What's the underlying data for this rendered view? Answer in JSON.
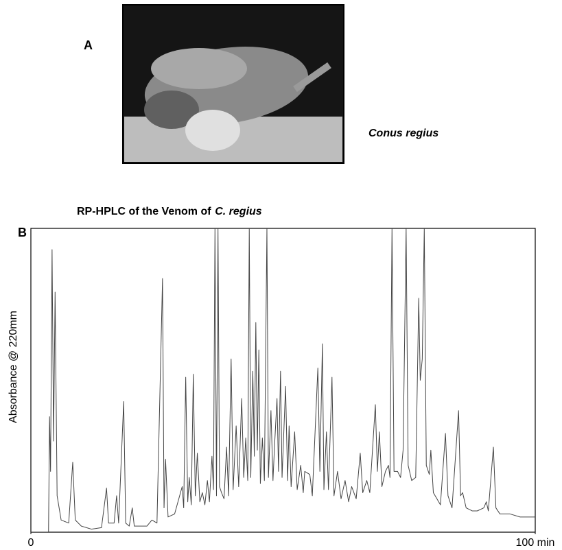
{
  "panel_a": {
    "label": "A",
    "caption": "Conus regius"
  },
  "chart_data": {
    "type": "line",
    "label": "B",
    "title": "RP-HPLC of the Venom of",
    "title_italic": "C. regius",
    "y_label": "Absorbance @ 220mm",
    "color": "#444444",
    "xlim": [
      0,
      100
    ],
    "xticks": [
      0,
      {
        "value": 100,
        "label": "100 min"
      }
    ],
    "ylim": [
      0,
      100
    ],
    "x": [
      0,
      3.5,
      3.7,
      3.9,
      4.2,
      4.5,
      4.8,
      5.2,
      6,
      7.5,
      8.3,
      8.8,
      10,
      12,
      14,
      15,
      15.4,
      16.5,
      17,
      17.4,
      18.4,
      18.8,
      19.5,
      20.1,
      20.5,
      23,
      24,
      25,
      26.1,
      26.4,
      26.7,
      27.2,
      28.5,
      30,
      30.3,
      30.7,
      31.1,
      31.4,
      31.8,
      32.2,
      32.6,
      33,
      33.5,
      34,
      34.5,
      35,
      35.4,
      35.9,
      36.2,
      36.5,
      36.8,
      37.1,
      37.4,
      37.8,
      38.3,
      38.8,
      39.2,
      39.7,
      40.1,
      40.7,
      41.2,
      41.8,
      42.2,
      42.6,
      43,
      43.3,
      43.6,
      44,
      44.3,
      44.6,
      44.9,
      45.2,
      45.5,
      45.9,
      46.3,
      46.8,
      47.1,
      47.6,
      48,
      48.3,
      48.8,
      49.1,
      49.5,
      49.8,
      50.5,
      50.9,
      51.2,
      51.6,
      52.3,
      52.8,
      53.5,
      54,
      54.3,
      55.3,
      55.8,
      56.9,
      57.3,
      57.8,
      58.1,
      58.6,
      59,
      59.7,
      60.1,
      60.8,
      61.5,
      62.3,
      63,
      63.6,
      64.5,
      65.3,
      65.8,
      66.6,
      67.2,
      68.3,
      68.7,
      69.1,
      69.6,
      70.3,
      70.9,
      71.2,
      71.6,
      72,
      72.7,
      73.3,
      73.8,
      74.4,
      74.8,
      75.5,
      76.3,
      76.9,
      77.2,
      77.6,
      78,
      78.4,
      79,
      79.3,
      79.8,
      80.5,
      81.2,
      82.2,
      82.7,
      83.5,
      84.8,
      85.2,
      85.6,
      86.3,
      87.5,
      88.5,
      89.8,
      90.3,
      90.7,
      91.7,
      92.2,
      93,
      95,
      97,
      100
    ],
    "values": [
      0,
      0,
      38,
      20,
      93,
      30,
      79,
      12,
      4,
      3,
      23,
      4,
      2,
      1,
      1.5,
      14.5,
      3,
      3,
      12,
      3,
      43,
      3,
      2,
      8,
      2,
      2,
      4,
      3,
      83.5,
      8,
      24,
      5,
      6,
      15,
      8,
      51,
      10,
      18,
      9,
      52,
      12,
      26,
      10,
      13,
      9,
      17,
      10,
      25,
      14,
      100,
      12,
      100,
      15,
      13,
      11,
      28,
      12,
      57,
      14,
      35,
      15,
      44,
      18,
      31,
      17,
      100,
      18,
      53,
      25,
      69,
      27,
      60,
      16,
      31,
      17,
      100,
      18,
      40,
      17,
      28,
      44,
      20,
      53,
      18,
      48,
      17,
      35,
      15,
      33,
      14,
      22,
      13,
      20,
      19,
      12,
      54,
      20,
      62,
      14,
      33,
      14,
      51,
      12,
      20,
      11,
      17,
      10,
      15,
      11,
      26,
      13,
      17,
      13,
      42,
      20,
      33,
      15,
      20,
      22,
      18,
      100,
      20,
      20,
      18,
      27,
      100,
      22,
      17,
      18,
      77,
      50,
      57,
      100,
      22,
      19,
      27,
      13,
      11,
      9,
      32.5,
      12,
      8,
      40,
      12,
      13,
      8,
      7,
      7,
      8,
      10,
      7,
      28,
      8,
      6,
      6,
      5,
      5
    ]
  }
}
